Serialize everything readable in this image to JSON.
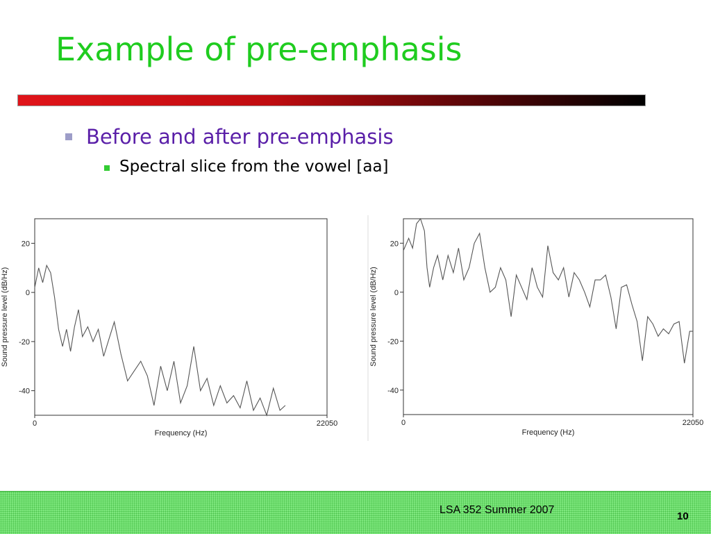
{
  "title": "Example of pre-emphasis",
  "bullets": [
    "Before and after pre-emphasis",
    "Spectral slice from the vowel [aa]"
  ],
  "footer": "LSA 352 Summer 2007",
  "page_number": "10",
  "chart_data": [
    {
      "type": "line",
      "xlabel": "Frequency (Hz)",
      "ylabel": "Sound pressure level (dB/Hz)",
      "xlim": [
        0,
        22050
      ],
      "xticks": [
        0,
        22050
      ],
      "ylim": [
        -50,
        30
      ],
      "yticks": [
        -40,
        -20,
        0,
        20
      ],
      "color": "#555555",
      "x": [
        0,
        300,
        600,
        900,
        1200,
        1500,
        1800,
        2100,
        2400,
        2700,
        3000,
        3300,
        3600,
        4000,
        4400,
        4800,
        5200,
        5600,
        6000,
        6500,
        7000,
        7500,
        8000,
        8500,
        9000,
        9500,
        10000,
        10500,
        11000,
        11500,
        12000,
        12500,
        13000,
        13500,
        14000,
        14500,
        15000,
        15500,
        16000,
        16500,
        17000,
        17500,
        18000,
        18500,
        18900
      ],
      "values": [
        2,
        10,
        4,
        11,
        8,
        -2,
        -15,
        -22,
        -15,
        -24,
        -14,
        -7,
        -18,
        -14,
        -20,
        -15,
        -26,
        -19,
        -12,
        -25,
        -36,
        -32,
        -28,
        -34,
        -46,
        -30,
        -40,
        -28,
        -45,
        -38,
        -22,
        -40,
        -35,
        -46,
        -38,
        -45,
        -42,
        -47,
        -36,
        -48,
        -43,
        -50,
        -39,
        -48,
        -46
      ]
    },
    {
      "type": "line",
      "xlabel": "Frequency (Hz)",
      "ylabel": "Sound pressure level (dB/Hz)",
      "xlim": [
        0,
        22050
      ],
      "xticks": [
        0,
        22050
      ],
      "ylim": [
        -50,
        30
      ],
      "yticks": [
        -40,
        -20,
        0,
        20
      ],
      "color": "#555555",
      "x": [
        0,
        400,
        700,
        1000,
        1300,
        1600,
        1800,
        2000,
        2300,
        2600,
        3000,
        3400,
        3800,
        4200,
        4600,
        5000,
        5400,
        5800,
        6200,
        6600,
        7000,
        7400,
        7800,
        8200,
        8600,
        9000,
        9400,
        9800,
        10200,
        10600,
        11000,
        11400,
        11800,
        12200,
        12600,
        13000,
        13400,
        13800,
        14200,
        14600,
        15000,
        15400,
        15800,
        16200,
        16600,
        17000,
        17400,
        17800,
        18200,
        18600,
        19000,
        19400,
        19800,
        20200,
        20600,
        21000,
        21400,
        21800,
        22050
      ],
      "values": [
        17,
        22,
        18,
        28,
        30,
        25,
        10,
        2,
        10,
        15,
        5,
        15,
        8,
        18,
        5,
        10,
        20,
        24,
        10,
        0,
        2,
        10,
        5,
        -10,
        7,
        2,
        -3,
        10,
        2,
        -2,
        19,
        8,
        5,
        10,
        -2,
        8,
        5,
        0,
        -6,
        5,
        5,
        7,
        -2,
        -15,
        2,
        3,
        -5,
        -12,
        -28,
        -10,
        -13,
        -18,
        -15,
        -17,
        -13,
        -12,
        -29,
        -16,
        -16
      ]
    }
  ]
}
